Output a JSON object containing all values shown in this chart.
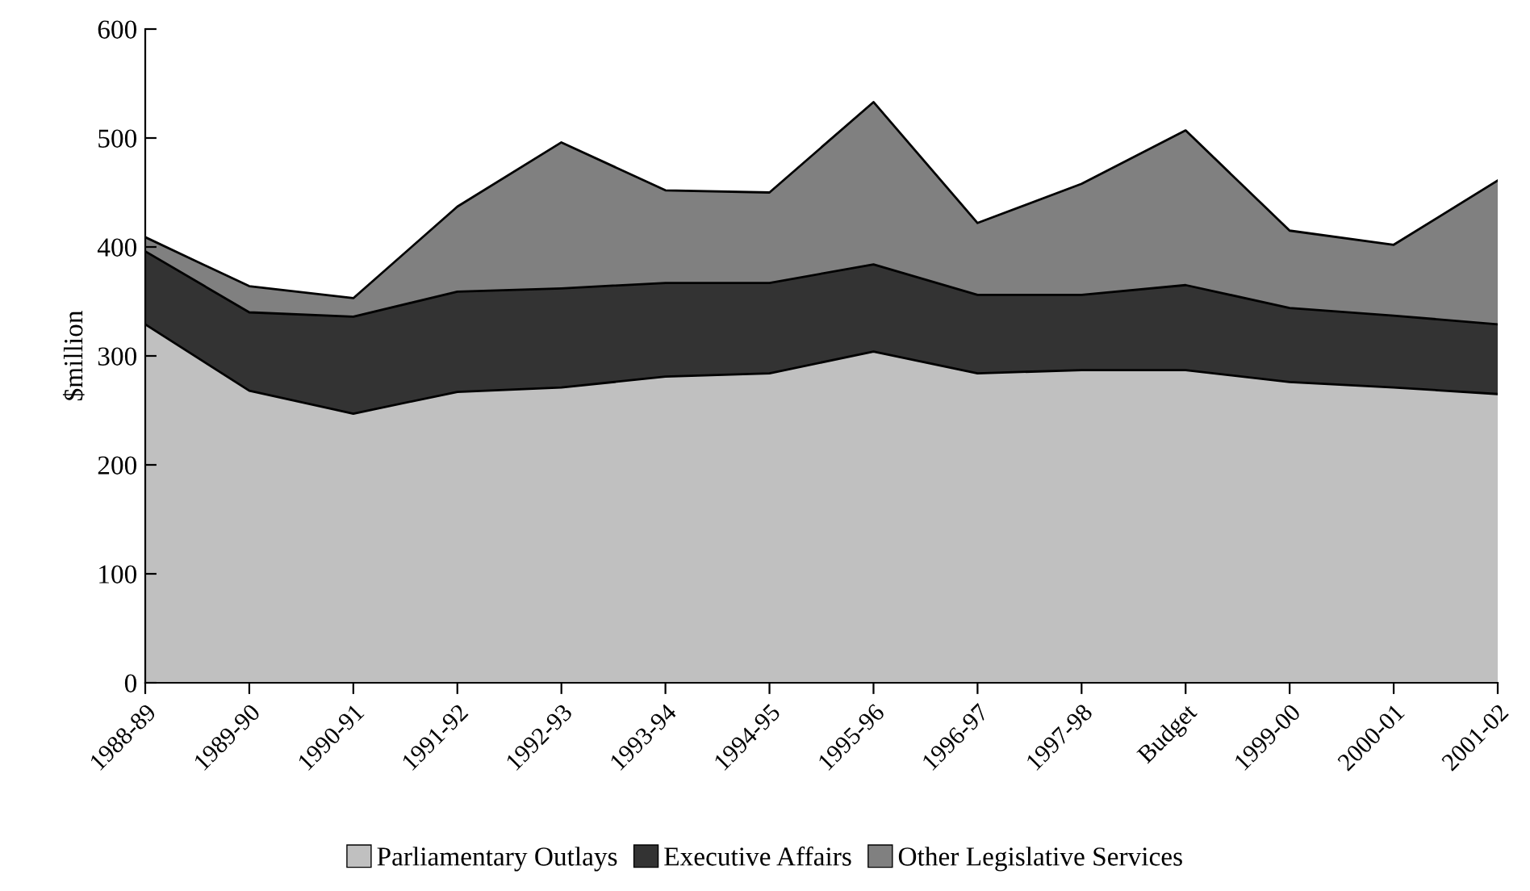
{
  "chart_data": {
    "type": "area",
    "stacked": true,
    "ylabel": "$million",
    "categories": [
      "1988-89",
      "1989-90",
      "1990-91",
      "1991-92",
      "1992-93",
      "1993-94",
      "1994-95",
      "1995-96",
      "1996-97",
      "1997-98",
      "Budget",
      "1999-00",
      "2000-01",
      "2001-02"
    ],
    "series": [
      {
        "name": "Parliamentary Outlays",
        "color": "#c0c0c0",
        "values": [
          329,
          268,
          247,
          267,
          271,
          281,
          284,
          304,
          284,
          287,
          287,
          276,
          271,
          265
        ]
      },
      {
        "name": "Executive Affairs",
        "color": "#333333",
        "values": [
          67,
          72,
          89,
          92,
          91,
          86,
          83,
          80,
          72,
          69,
          78,
          68,
          66,
          64
        ]
      },
      {
        "name": "Other Legislative Services",
        "color": "#808080",
        "values": [
          13,
          24,
          17,
          78,
          134,
          85,
          83,
          149,
          66,
          102,
          142,
          71,
          65,
          132
        ]
      }
    ],
    "ylim": [
      0,
      600
    ],
    "yticks": [
      0,
      100,
      200,
      300,
      400,
      500,
      600
    ],
    "legend": "bottom",
    "grid": false
  }
}
